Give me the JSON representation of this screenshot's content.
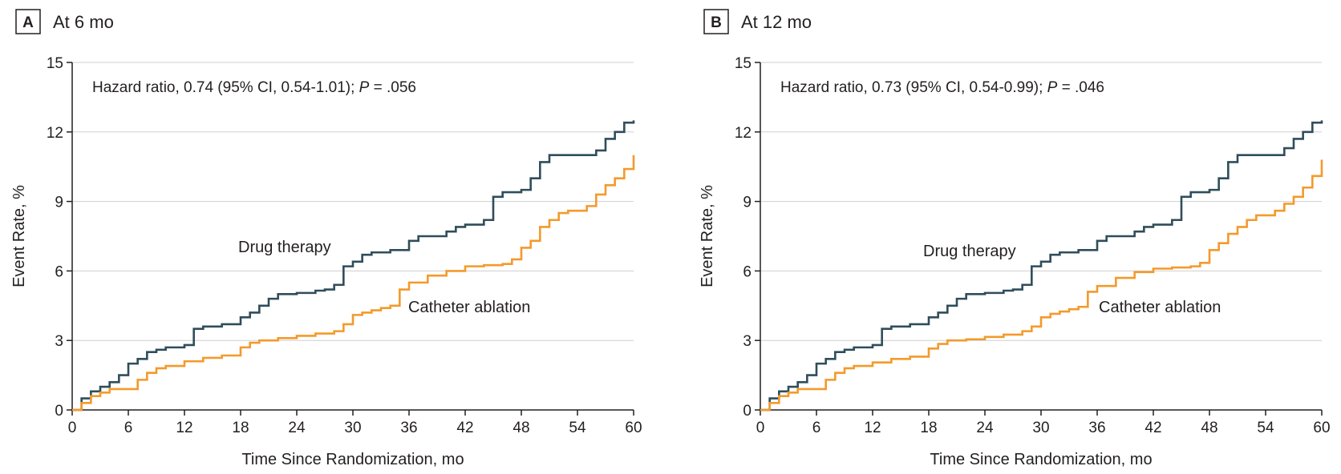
{
  "colors": {
    "drug_therapy": "#2f4d5a",
    "catheter_ablation": "#f39a2b",
    "grid": "#cfcfcf",
    "axis": "#231f20",
    "text": "#231f20"
  },
  "chart_data": [
    {
      "type": "line",
      "step": true,
      "panel_letter": "A",
      "title": "At 6 mo",
      "annotation": {
        "prefix": "Hazard ratio, 0.74 (95% CI, 0.54-1.01); ",
        "p_symbol": "P",
        "p_value": " = .056"
      },
      "xlabel": "Time Since Randomization, mo",
      "ylabel": "Event Rate, %",
      "xlim": [
        0,
        60
      ],
      "ylim": [
        0,
        15
      ],
      "xticks": [
        0,
        6,
        12,
        18,
        24,
        30,
        36,
        42,
        48,
        54,
        60
      ],
      "yticks": [
        0,
        3,
        6,
        9,
        12,
        15
      ],
      "grid": true,
      "series": [
        {
          "name": "Drug therapy",
          "x": [
            0,
            1,
            2,
            3,
            4,
            5,
            6,
            7,
            8,
            9,
            10,
            12,
            13,
            14,
            15,
            16,
            18,
            19,
            20,
            21,
            22,
            24,
            26,
            27,
            28,
            29,
            30,
            31,
            32,
            33,
            34,
            36,
            37,
            38,
            40,
            41,
            42,
            44,
            45,
            46,
            48,
            49,
            50,
            51,
            52,
            54,
            55,
            56,
            57,
            58,
            59,
            60
          ],
          "y": [
            0,
            0.5,
            0.8,
            1.0,
            1.2,
            1.5,
            2.0,
            2.2,
            2.5,
            2.6,
            2.7,
            2.8,
            3.5,
            3.6,
            3.6,
            3.7,
            4.0,
            4.2,
            4.5,
            4.8,
            5.0,
            5.05,
            5.15,
            5.2,
            5.4,
            6.2,
            6.4,
            6.7,
            6.8,
            6.8,
            6.9,
            7.3,
            7.5,
            7.5,
            7.7,
            7.9,
            8.0,
            8.2,
            9.2,
            9.4,
            9.5,
            10.0,
            10.7,
            11.0,
            11.0,
            11.0,
            11.0,
            11.2,
            11.7,
            12.0,
            12.4,
            12.5
          ]
        },
        {
          "name": "Catheter ablation",
          "x": [
            0,
            1,
            2,
            3,
            4,
            5,
            6,
            7,
            8,
            9,
            10,
            12,
            14,
            16,
            18,
            19,
            20,
            22,
            24,
            26,
            28,
            29,
            30,
            31,
            32,
            33,
            34,
            35,
            36,
            38,
            40,
            42,
            44,
            46,
            47,
            48,
            49,
            50,
            51,
            52,
            53,
            54,
            55,
            56,
            57,
            58,
            59,
            60
          ],
          "y": [
            0,
            0.3,
            0.6,
            0.75,
            0.9,
            0.9,
            0.9,
            1.3,
            1.6,
            1.8,
            1.9,
            2.1,
            2.25,
            2.35,
            2.7,
            2.9,
            3.0,
            3.1,
            3.2,
            3.3,
            3.4,
            3.7,
            4.1,
            4.2,
            4.3,
            4.4,
            4.5,
            5.2,
            5.5,
            5.8,
            6.0,
            6.2,
            6.25,
            6.3,
            6.5,
            7.0,
            7.3,
            7.9,
            8.2,
            8.5,
            8.6,
            8.6,
            8.8,
            9.3,
            9.7,
            10.0,
            10.4,
            11.0
          ]
        }
      ]
    },
    {
      "type": "line",
      "step": true,
      "panel_letter": "B",
      "title": "At 12 mo",
      "annotation": {
        "prefix": "Hazard ratio, 0.73 (95% CI, 0.54-0.99); ",
        "p_symbol": "P",
        "p_value": " = .046"
      },
      "xlabel": "Time Since Randomization, mo",
      "ylabel": "Event Rate, %",
      "xlim": [
        0,
        60
      ],
      "ylim": [
        0,
        15
      ],
      "xticks": [
        0,
        6,
        12,
        18,
        24,
        30,
        36,
        42,
        48,
        54,
        60
      ],
      "yticks": [
        0,
        3,
        6,
        9,
        12,
        15
      ],
      "grid": true,
      "series": [
        {
          "name": "Drug therapy",
          "x": [
            0,
            1,
            2,
            3,
            4,
            5,
            6,
            7,
            8,
            9,
            10,
            12,
            13,
            14,
            15,
            16,
            18,
            19,
            20,
            21,
            22,
            24,
            26,
            27,
            28,
            29,
            30,
            31,
            32,
            33,
            34,
            36,
            37,
            38,
            40,
            41,
            42,
            44,
            45,
            46,
            48,
            49,
            50,
            51,
            52,
            54,
            55,
            56,
            57,
            58,
            59,
            60
          ],
          "y": [
            0,
            0.5,
            0.8,
            1.0,
            1.2,
            1.5,
            2.0,
            2.2,
            2.5,
            2.6,
            2.7,
            2.8,
            3.5,
            3.6,
            3.6,
            3.7,
            4.0,
            4.2,
            4.5,
            4.8,
            5.0,
            5.05,
            5.15,
            5.2,
            5.4,
            6.2,
            6.4,
            6.7,
            6.8,
            6.8,
            6.9,
            7.3,
            7.5,
            7.5,
            7.7,
            7.9,
            8.0,
            8.2,
            9.2,
            9.4,
            9.5,
            10.0,
            10.7,
            11.0,
            11.0,
            11.0,
            11.0,
            11.3,
            11.7,
            12.0,
            12.4,
            12.5
          ]
        },
        {
          "name": "Catheter ablation",
          "x": [
            0,
            1,
            2,
            3,
            4,
            5,
            6,
            7,
            8,
            9,
            10,
            12,
            14,
            16,
            18,
            19,
            20,
            22,
            24,
            26,
            28,
            29,
            30,
            31,
            32,
            33,
            34,
            35,
            36,
            38,
            40,
            42,
            44,
            46,
            47,
            48,
            49,
            50,
            51,
            52,
            53,
            54,
            55,
            56,
            57,
            58,
            59,
            60
          ],
          "y": [
            0,
            0.3,
            0.6,
            0.75,
            0.9,
            0.9,
            0.9,
            1.3,
            1.6,
            1.8,
            1.9,
            2.05,
            2.2,
            2.3,
            2.65,
            2.85,
            3.0,
            3.05,
            3.15,
            3.25,
            3.4,
            3.6,
            4.0,
            4.15,
            4.25,
            4.35,
            4.45,
            5.1,
            5.35,
            5.7,
            5.95,
            6.1,
            6.15,
            6.2,
            6.35,
            6.9,
            7.2,
            7.6,
            7.9,
            8.2,
            8.4,
            8.4,
            8.6,
            8.9,
            9.2,
            9.6,
            10.1,
            10.8
          ]
        }
      ]
    }
  ]
}
